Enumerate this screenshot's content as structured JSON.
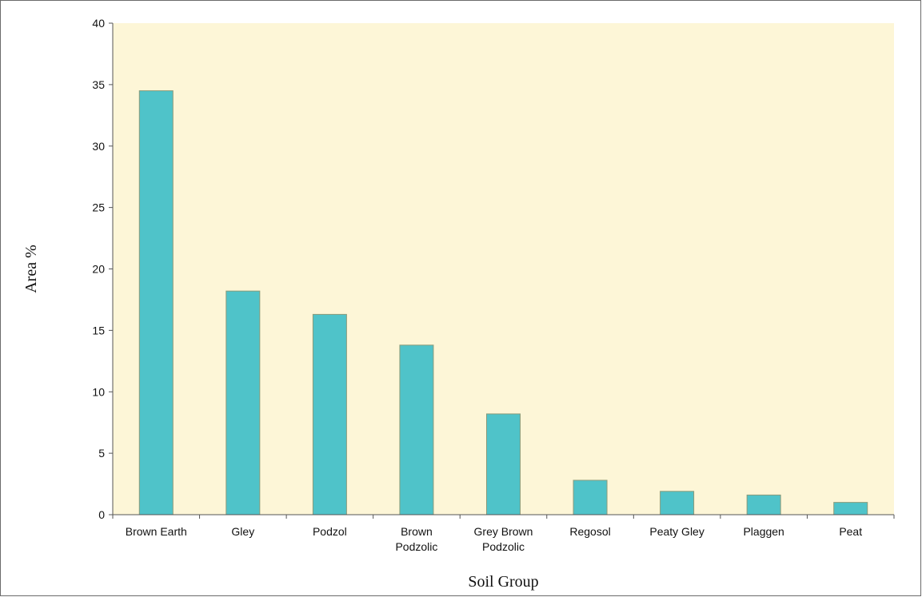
{
  "chart_data": {
    "type": "bar",
    "categories": [
      [
        "Brown Earth"
      ],
      [
        "Gley"
      ],
      [
        "Podzol"
      ],
      [
        "Brown",
        "Podzolic"
      ],
      [
        "Grey Brown",
        "Podzolic"
      ],
      [
        "Regosol"
      ],
      [
        "Peaty Gley"
      ],
      [
        "Plaggen"
      ],
      [
        "Peat"
      ]
    ],
    "values": [
      34.5,
      18.2,
      16.3,
      13.8,
      8.2,
      2.8,
      1.9,
      1.6,
      1.0
    ],
    "xlabel": "Soil Group",
    "ylabel": "Area %",
    "ylim": [
      0,
      40
    ],
    "yticks": [
      0,
      5,
      10,
      15,
      20,
      25,
      30,
      35,
      40
    ],
    "grid": false,
    "colors": {
      "plot_background": "#fdf6d7",
      "bar_fill": "#4fc3c9",
      "bar_stroke": "#8a9a7a",
      "axis": "#555555"
    }
  }
}
